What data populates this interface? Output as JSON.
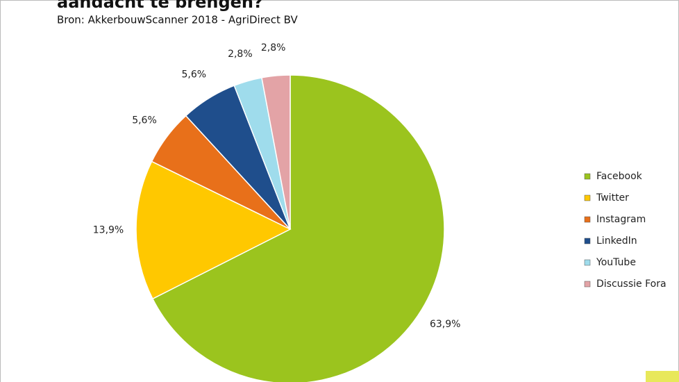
{
  "chart_data": {
    "type": "pie",
    "title": "aandacht te brengen?",
    "subtitle": "Bron: AkkerbouwScanner 2018 - AgriDirect BV",
    "categories": [
      "Facebook",
      "Twitter",
      "Instagram",
      "LinkedIn",
      "YouTube",
      "Discussie Fora"
    ],
    "values": [
      63.9,
      13.9,
      5.6,
      5.6,
      2.8,
      2.8
    ],
    "value_labels": [
      "63,9%",
      "13,9%",
      "5,6%",
      "5,6%",
      "2,8%",
      "2,8%"
    ],
    "colors": [
      "#9bc41e",
      "#ffc800",
      "#e8701a",
      "#1f4e8c",
      "#9fdcec",
      "#e3a3a6"
    ],
    "legend": "right"
  }
}
